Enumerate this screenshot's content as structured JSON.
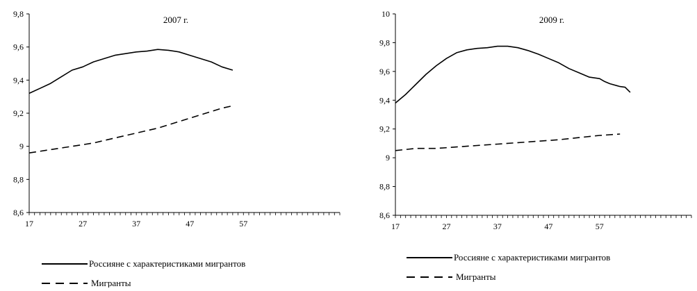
{
  "chart_data": [
    {
      "type": "line",
      "title": "2007 г.",
      "xlabel": "",
      "ylabel": "",
      "xlim": [
        17,
        75
      ],
      "ylim": [
        8.6,
        9.8
      ],
      "x_ticks": [
        "17",
        "27",
        "37",
        "47",
        "57"
      ],
      "y_ticks": [
        "8,6",
        "8,8",
        "9",
        "9,2",
        "9,4",
        "9,6",
        "9,8"
      ],
      "grid": false,
      "legend_position": "bottom",
      "series": [
        {
          "name": "Россияне с характеристиками мигрантов",
          "style": "solid",
          "x": [
            17,
            19,
            21,
            23,
            25,
            27,
            29,
            31,
            33,
            35,
            37,
            39,
            41,
            43,
            45,
            47,
            49,
            51,
            53,
            55
          ],
          "values": [
            9.32,
            9.35,
            9.38,
            9.42,
            9.46,
            9.48,
            9.51,
            9.53,
            9.55,
            9.56,
            9.57,
            9.575,
            9.585,
            9.58,
            9.57,
            9.55,
            9.53,
            9.51,
            9.48,
            9.46
          ]
        },
        {
          "name": "Мигранты",
          "style": "dashed",
          "x": [
            17,
            21,
            25,
            29,
            33,
            37,
            41,
            45,
            49,
            53,
            55
          ],
          "values": [
            8.96,
            8.98,
            9.0,
            9.02,
            9.05,
            9.08,
            9.11,
            9.15,
            9.19,
            9.23,
            9.245
          ]
        }
      ]
    },
    {
      "type": "line",
      "title": "2009 г.",
      "xlabel": "",
      "ylabel": "",
      "xlim": [
        17,
        75
      ],
      "ylim": [
        8.6,
        10.0
      ],
      "x_ticks": [
        "17",
        "27",
        "37",
        "47",
        "57"
      ],
      "y_ticks": [
        "8,6",
        "8,8",
        "9",
        "9,2",
        "9,4",
        "9,6",
        "9,8",
        "10"
      ],
      "grid": false,
      "legend_position": "bottom",
      "series": [
        {
          "name": "Россияне с характеристиками мигрантов",
          "style": "solid",
          "x": [
            17,
            19,
            21,
            23,
            25,
            27,
            29,
            31,
            33,
            35,
            37,
            39,
            41,
            43,
            45,
            47,
            49,
            51,
            53,
            55,
            57,
            58,
            59,
            61,
            62,
            63
          ],
          "values": [
            9.38,
            9.44,
            9.51,
            9.58,
            9.64,
            9.69,
            9.73,
            9.75,
            9.76,
            9.765,
            9.775,
            9.775,
            9.765,
            9.745,
            9.72,
            9.69,
            9.66,
            9.62,
            9.59,
            9.56,
            9.55,
            9.53,
            9.515,
            9.495,
            9.49,
            9.455
          ]
        },
        {
          "name": "Мигранты",
          "style": "dashed",
          "x": [
            17,
            21,
            25,
            29,
            33,
            37,
            41,
            45,
            49,
            53,
            57,
            61
          ],
          "values": [
            9.05,
            9.065,
            9.065,
            9.075,
            9.085,
            9.095,
            9.105,
            9.115,
            9.125,
            9.14,
            9.155,
            9.165
          ]
        }
      ]
    }
  ]
}
